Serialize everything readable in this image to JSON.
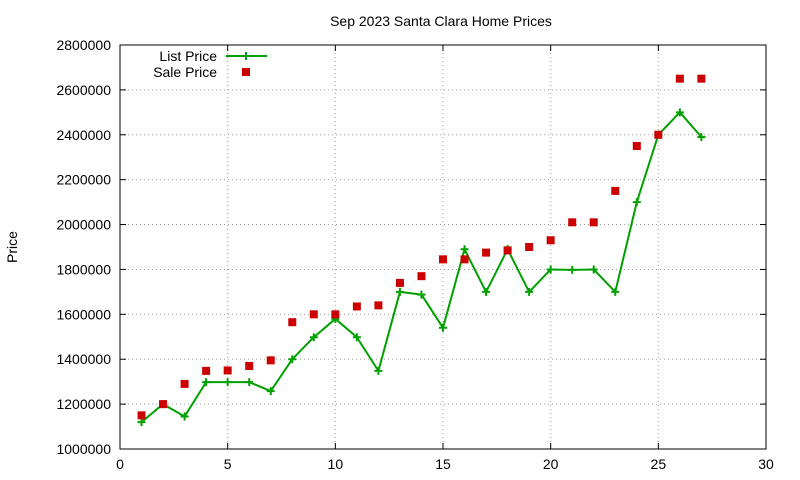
{
  "chart_data": {
    "type": "line",
    "title": "Sep 2023 Santa Clara Home Prices",
    "xlabel": "",
    "ylabel": "Price",
    "xlim": [
      0,
      30
    ],
    "ylim": [
      1000000,
      2800000
    ],
    "xticks": [
      0,
      5,
      10,
      15,
      20,
      25,
      30
    ],
    "yticks": [
      1000000,
      1200000,
      1400000,
      1600000,
      1800000,
      2000000,
      2200000,
      2400000,
      2600000,
      2800000
    ],
    "grid": true,
    "legend_position": "top-left",
    "series": [
      {
        "name": "List Price",
        "style": "line-with-plus-markers",
        "color": "#00a000",
        "x": [
          1,
          2,
          3,
          4,
          5,
          6,
          7,
          8,
          9,
          10,
          11,
          12,
          13,
          14,
          15,
          16,
          17,
          18,
          19,
          20,
          21,
          22,
          23,
          24,
          25,
          26,
          27
        ],
        "y": [
          1120000,
          1200000,
          1145000,
          1298000,
          1298000,
          1298000,
          1258000,
          1400000,
          1498000,
          1580000,
          1498000,
          1348000,
          1700000,
          1688000,
          1540000,
          1890000,
          1700000,
          1890000,
          1700000,
          1800000,
          1798000,
          1800000,
          1700000,
          2100000,
          2400000,
          2500000,
          2390000
        ]
      },
      {
        "name": "Sale Price",
        "style": "square-markers",
        "color": "#cc0000",
        "x": [
          1,
          2,
          3,
          4,
          5,
          6,
          7,
          8,
          9,
          10,
          11,
          12,
          13,
          14,
          15,
          16,
          17,
          18,
          19,
          20,
          21,
          22,
          23,
          24,
          25,
          26,
          27
        ],
        "y": [
          1150000,
          1200000,
          1290000,
          1348000,
          1350000,
          1370000,
          1395000,
          1565000,
          1600000,
          1600000,
          1635000,
          1640000,
          1740000,
          1770000,
          1845000,
          1845000,
          1875000,
          1885000,
          1900000,
          1930000,
          2010000,
          2010000,
          2150000,
          2350000,
          2400000,
          2650000,
          2650000
        ]
      }
    ]
  }
}
